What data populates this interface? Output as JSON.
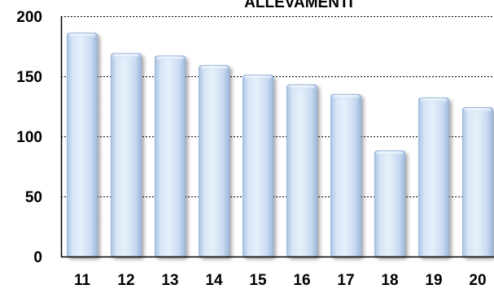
{
  "chart_data": {
    "type": "bar",
    "title": "ALLEVAMENTI",
    "categories": [
      "11",
      "12",
      "13",
      "14",
      "15",
      "16",
      "17",
      "18",
      "19",
      "20"
    ],
    "values": [
      186,
      169,
      167,
      159,
      151,
      143,
      135,
      88,
      132,
      124
    ],
    "ylim": [
      0,
      200
    ],
    "yticks": [
      "0",
      "50",
      "100",
      "150",
      "200"
    ],
    "grid": true,
    "bar_color": "#c5d9f1",
    "bar_edge_color": "#9bb8dc",
    "bar_shadow_color": "#8aa9cc"
  }
}
